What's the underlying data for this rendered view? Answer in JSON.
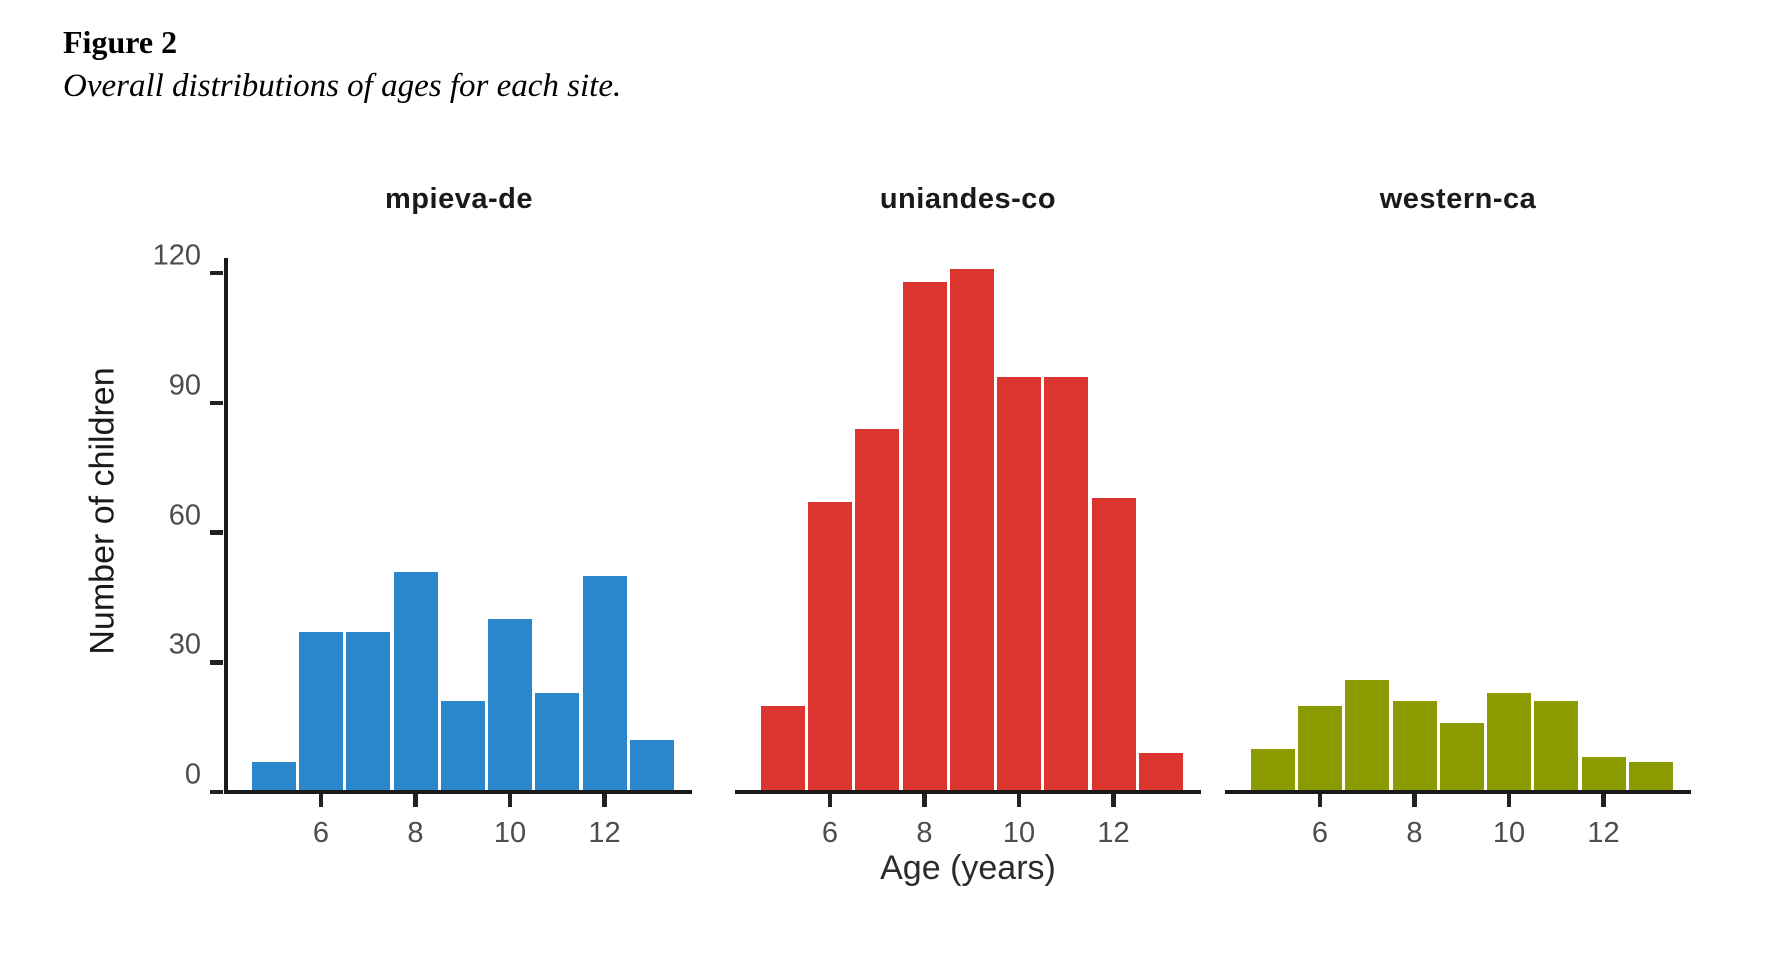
{
  "caption": {
    "label": "Figure 2",
    "subtitle": "Overall distributions of ages for each site."
  },
  "chart_data": {
    "type": "bar",
    "subtype": "faceted-histogram",
    "categories": [
      5,
      6,
      7,
      8,
      9,
      10,
      11,
      12,
      13
    ],
    "series": [
      {
        "name": "mpieva-de",
        "color": "#2A87CC",
        "values": [
          7,
          37,
          37,
          51,
          21,
          40,
          23,
          50,
          12
        ]
      },
      {
        "name": "uniandes-co",
        "color": "#DA352E",
        "values": [
          20,
          67,
          84,
          118,
          121,
          96,
          96,
          68,
          9
        ]
      },
      {
        "name": "western-ca",
        "color": "#8C9B00",
        "values": [
          10,
          20,
          26,
          21,
          16,
          23,
          21,
          8,
          7
        ]
      }
    ],
    "xlabel": "Age (years)",
    "ylabel": "Number of children",
    "x_ticks": [
      6,
      8,
      10,
      12
    ],
    "y_ticks": [
      0,
      30,
      60,
      90,
      120
    ],
    "ylim": [
      0,
      130
    ],
    "grid": false,
    "legend_position": "none",
    "axis_color": "#1a1a1a",
    "tick_label_color": "#4d4d4d"
  }
}
